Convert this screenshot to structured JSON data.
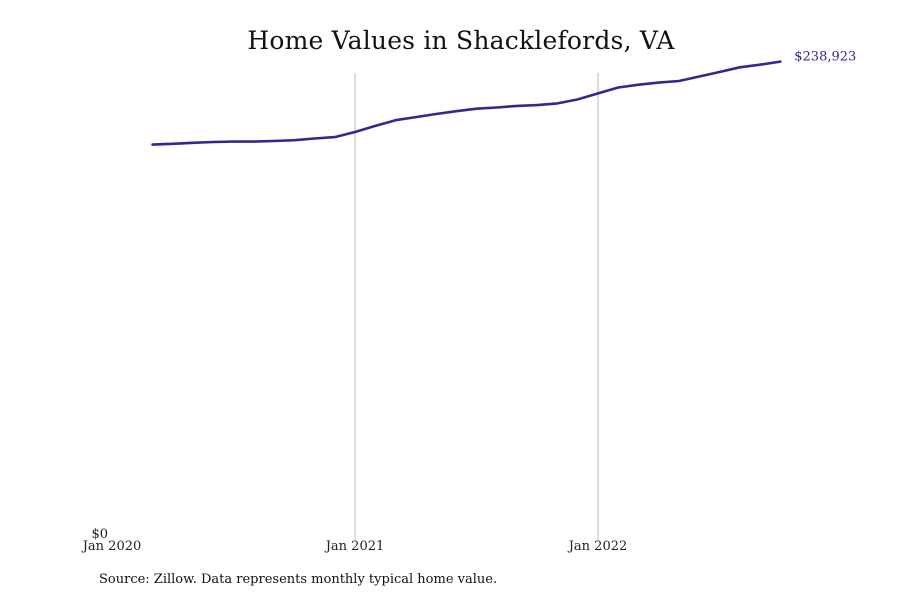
{
  "title": "Home Values in Shacklefords, VA",
  "source_note": "Source: Zillow. Data represents monthly typical home value.",
  "colors": {
    "line": "#2e2a8f",
    "gridline": "#bbbbbb",
    "background": "#ffffff"
  },
  "chart_data": {
    "type": "line",
    "title": "Home Values in Shacklefords, VA",
    "xlabel": "",
    "ylabel": "",
    "x_tick_labels": [
      "Jan 2020",
      "Jan 2021",
      "Jan 2022"
    ],
    "y_tick_labels": [
      "$0"
    ],
    "ylim": [
      0,
      250000
    ],
    "grid": "vertical lines at Jan 2021 and Jan 2022",
    "legend": "none",
    "end_label": "$238,923",
    "series": [
      {
        "x": [
          "2020-03",
          "2020-04",
          "2020-05",
          "2020-06",
          "2020-07",
          "2020-08",
          "2020-09",
          "2020-10",
          "2020-11",
          "2020-12",
          "2021-01",
          "2021-02",
          "2021-03",
          "2021-04",
          "2021-05",
          "2021-06",
          "2021-07",
          "2021-08",
          "2021-09",
          "2021-10",
          "2021-11",
          "2021-12",
          "2022-01",
          "2022-02",
          "2022-03",
          "2022-04",
          "2022-05",
          "2022-06",
          "2022-07",
          "2022-08",
          "2022-09",
          "2022-10"
        ],
        "values": [
          193800,
          194200,
          194700,
          195100,
          195300,
          195300,
          195600,
          196000,
          196800,
          197500,
          200000,
          203000,
          205800,
          207300,
          208800,
          210200,
          211400,
          212000,
          212800,
          213200,
          214000,
          216000,
          218900,
          221800,
          223200,
          224200,
          225000,
          227200,
          229400,
          231700,
          233000,
          234500
        ]
      }
    ]
  }
}
